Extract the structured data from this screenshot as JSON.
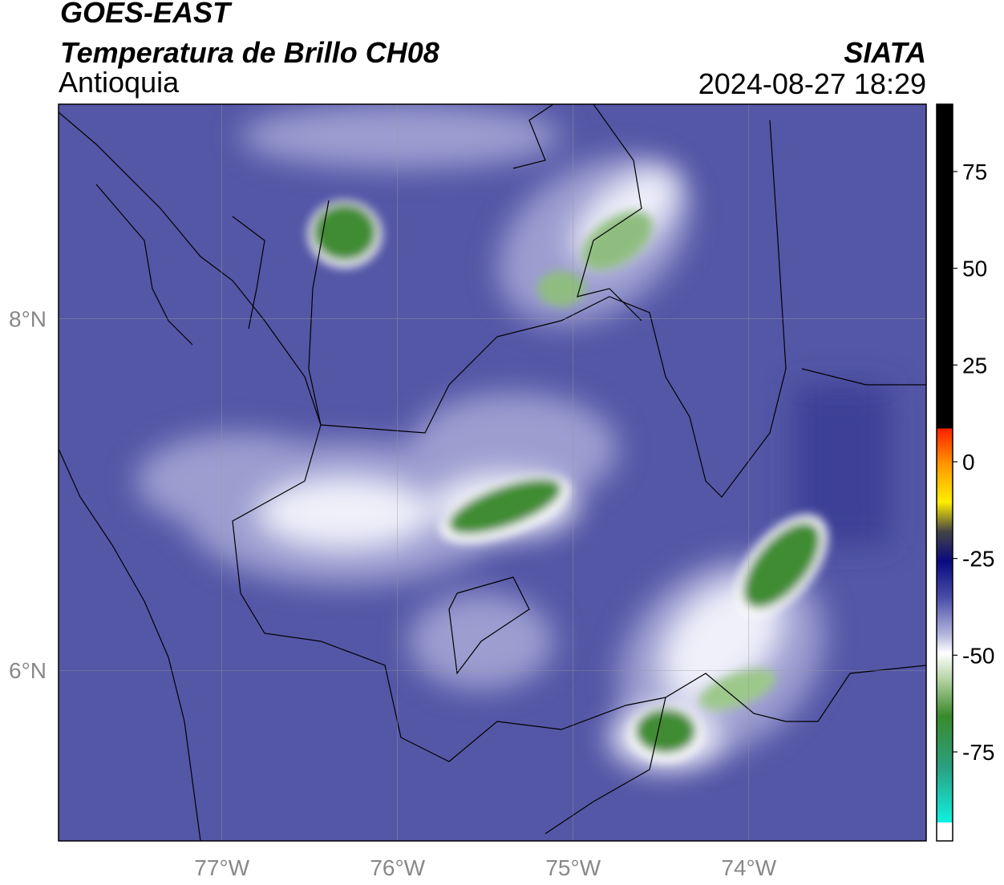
{
  "chart_data": {
    "type": "map",
    "title": "GOES-EAST",
    "subtitle": "Temperatura de Brillo CH08",
    "region": "Antioquia",
    "source": "SIATA",
    "timestamp": "2024-08-27 18:29",
    "xlim": [
      -77.93,
      -72.99
    ],
    "xticks": [
      {
        "value": -77,
        "label": "77°W"
      },
      {
        "value": -76,
        "label": "76°W"
      },
      {
        "value": -75,
        "label": "75°W"
      },
      {
        "value": -74,
        "label": "74°W"
      }
    ],
    "ylim": [
      5.03,
      9.22
    ],
    "yticks": [
      {
        "value": 6,
        "label": "6°N"
      },
      {
        "value": 8,
        "label": "8°N"
      }
    ],
    "grid": true,
    "colorbar": {
      "lim": [
        -98,
        92.4
      ],
      "ticks": [
        75,
        50,
        25,
        0,
        -25,
        -50,
        -75
      ]
    }
  }
}
